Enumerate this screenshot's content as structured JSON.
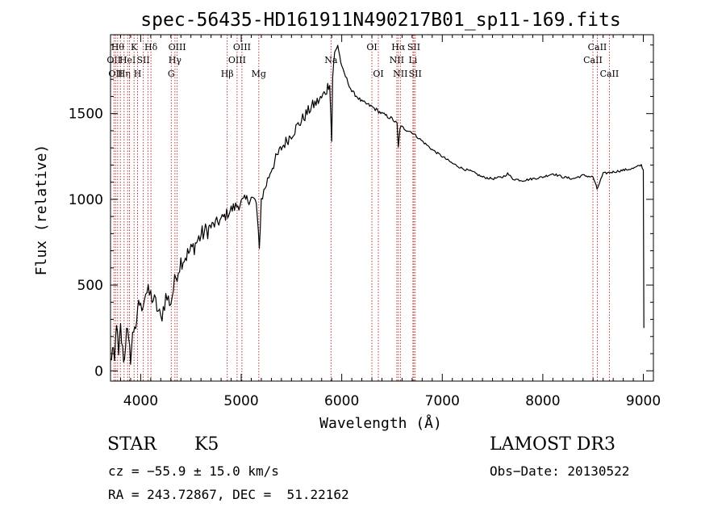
{
  "chart_data": {
    "type": "line",
    "title": "spec-56435-HD161911N490217B01_sp11-169.fits",
    "xlabel": "Wavelength (Å)",
    "ylabel": "Flux (relative)",
    "xlim": [
      3700,
      9100
    ],
    "ylim": [
      -60,
      1960
    ],
    "xticks": [
      4000,
      5000,
      6000,
      7000,
      8000,
      9000
    ],
    "yticks": [
      0,
      500,
      1000,
      1500
    ],
    "grid": false,
    "legend": "none",
    "series": [
      {
        "name": "spectrum",
        "x": [
          3700,
          3720,
          3740,
          3760,
          3780,
          3800,
          3820,
          3840,
          3860,
          3880,
          3900,
          3920,
          3940,
          3960,
          3980,
          4000,
          4050,
          4100,
          4150,
          4200,
          4250,
          4300,
          4350,
          4400,
          4500,
          4600,
          4700,
          4800,
          4900,
          5000,
          5100,
          5150,
          5180,
          5190,
          5200,
          5250,
          5300,
          5400,
          5500,
          5600,
          5700,
          5800,
          5850,
          5880,
          5900,
          5910,
          5930,
          5960,
          6000,
          6050,
          6100,
          6200,
          6300,
          6400,
          6500,
          6550,
          6563,
          6580,
          6600,
          6700,
          6800,
          6900,
          7000,
          7100,
          7200,
          7300,
          7400,
          7500,
          7600,
          7650,
          7700,
          7800,
          7900,
          8000,
          8100,
          8200,
          8300,
          8400,
          8500,
          8540,
          8600,
          8700,
          8800,
          8900,
          8980,
          9000,
          9005
        ],
        "y": [
          50,
          120,
          40,
          300,
          70,
          250,
          110,
          60,
          280,
          150,
          80,
          200,
          280,
          240,
          420,
          360,
          460,
          440,
          390,
          300,
          430,
          400,
          550,
          640,
          700,
          790,
          840,
          880,
          940,
          980,
          1010,
          980,
          700,
          860,
          1000,
          1090,
          1180,
          1300,
          1380,
          1460,
          1540,
          1590,
          1640,
          1690,
          1340,
          1720,
          1850,
          1900,
          1770,
          1700,
          1630,
          1570,
          1540,
          1500,
          1470,
          1440,
          1300,
          1420,
          1420,
          1390,
          1340,
          1290,
          1250,
          1210,
          1180,
          1160,
          1130,
          1120,
          1130,
          1150,
          1120,
          1110,
          1120,
          1130,
          1150,
          1130,
          1120,
          1140,
          1130,
          1060,
          1150,
          1160,
          1170,
          1180,
          1200,
          1170,
          250
        ]
      }
    ],
    "lines": [
      {
        "w": 3734,
        "label": "OII",
        "row": 2
      },
      {
        "w": 3750,
        "label": "OII",
        "row": 3
      },
      {
        "w": 3771,
        "label": "Hθ",
        "row": 1
      },
      {
        "w": 3798,
        "label": "",
        "row": 0
      },
      {
        "w": 3835,
        "label": "Hη",
        "row": 3
      },
      {
        "w": 3870,
        "label": "HeI",
        "row": 2
      },
      {
        "w": 3889,
        "label": "",
        "row": 0
      },
      {
        "w": 3934,
        "label": "K",
        "row": 1
      },
      {
        "w": 3969,
        "label": "H",
        "row": 3
      },
      {
        "w": 4026,
        "label": "SII",
        "row": 2
      },
      {
        "w": 4072,
        "label": "",
        "row": 0
      },
      {
        "w": 4102,
        "label": "Hδ",
        "row": 1
      },
      {
        "w": 4304,
        "label": "G",
        "row": 3
      },
      {
        "w": 4341,
        "label": "Hγ",
        "row": 2
      },
      {
        "w": 4363,
        "label": "OIII",
        "row": 1
      },
      {
        "w": 4861,
        "label": "Hβ",
        "row": 3
      },
      {
        "w": 4959,
        "label": "OIII",
        "row": 2
      },
      {
        "w": 5007,
        "label": "OIII",
        "row": 1
      },
      {
        "w": 5175,
        "label": "Mg",
        "row": 3
      },
      {
        "w": 5893,
        "label": "Na",
        "row": 2
      },
      {
        "w": 6300,
        "label": "OI",
        "row": 1
      },
      {
        "w": 6364,
        "label": "OI",
        "row": 3
      },
      {
        "w": 6548,
        "label": "NII",
        "row": 2
      },
      {
        "w": 6563,
        "label": "Hα",
        "row": 1
      },
      {
        "w": 6583,
        "label": "NII",
        "row": 3
      },
      {
        "w": 6708,
        "label": "Li",
        "row": 2
      },
      {
        "w": 6717,
        "label": "SII",
        "row": 1
      },
      {
        "w": 6731,
        "label": "SII",
        "row": 3
      },
      {
        "w": 8498,
        "label": "CaII",
        "row": 2
      },
      {
        "w": 8542,
        "label": "CaII",
        "row": 1
      },
      {
        "w": 8662,
        "label": "CaII",
        "row": 3
      }
    ]
  },
  "info": {
    "object_class": "STAR",
    "subclass": "K5",
    "survey": "LAMOST DR3",
    "cz": "cz = −55.9 ± 15.0 km/s",
    "obs_date": "Obs−Date: 20130522",
    "coords": "RA = 243.72867, DEC =  51.22162"
  }
}
